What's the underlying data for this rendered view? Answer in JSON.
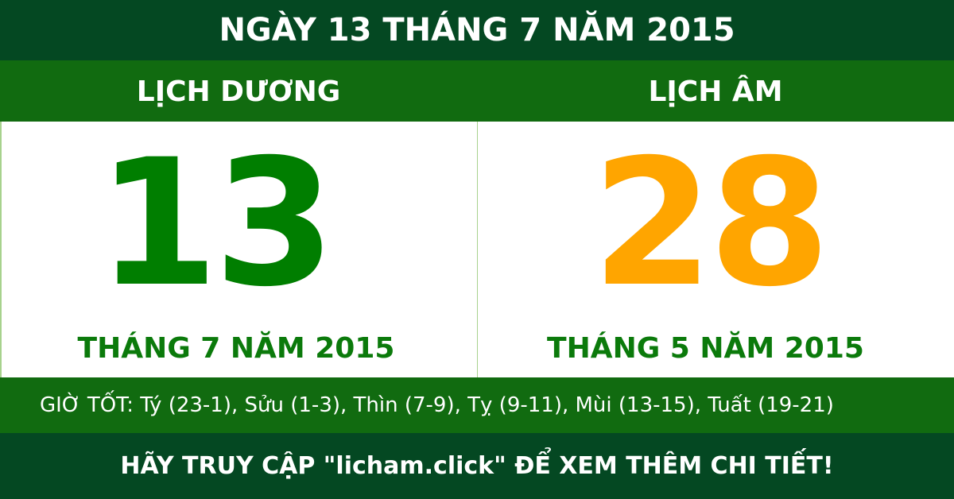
{
  "header": {
    "title": "NGÀY 13 THÁNG 7 NĂM 2015"
  },
  "solar": {
    "label": "LỊCH DƯƠNG",
    "day": "13",
    "month_year": "THÁNG 7 NĂM 2015"
  },
  "lunar": {
    "label": "LỊCH ÂM",
    "day": "28",
    "month_year": "THÁNG 5 NĂM 2015"
  },
  "good_hours": "GIỜ TỐT: Tý (23-1), Sửu (1-3), Thìn (7-9), Tỵ (9-11), Mùi (13-15), Tuất (19-21)",
  "footer": "HÃY TRUY CẬP \"licham.click\" ĐỂ XEM THÊM CHI TIẾT!",
  "colors": {
    "dark_green": "#044822",
    "green": "#116b10",
    "solar_day": "#007e00",
    "lunar_day": "#ffa500"
  }
}
